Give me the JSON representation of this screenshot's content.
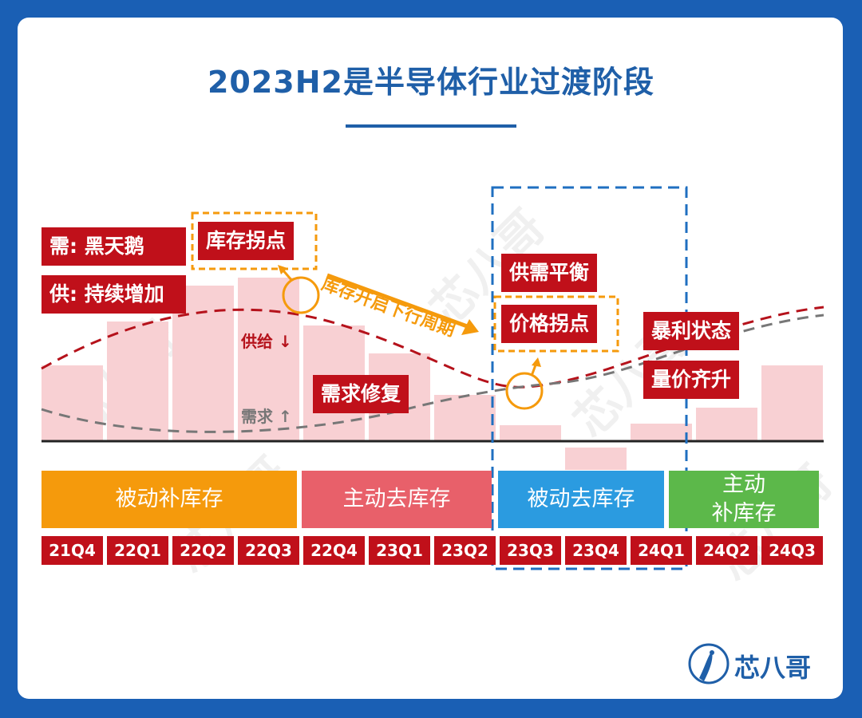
{
  "title": "2023H2是半导体行业过渡阶段",
  "chart_data": {
    "type": "bar",
    "categories": [
      "21Q4",
      "22Q1",
      "22Q2",
      "22Q3",
      "22Q4",
      "23Q1",
      "23Q2",
      "23Q3",
      "23Q4",
      "24Q1",
      "24Q2",
      "24Q3"
    ],
    "values": [
      95,
      150,
      195,
      205,
      145,
      110,
      58,
      20,
      -28,
      22,
      42,
      95
    ],
    "curves": [
      {
        "name": "供给",
        "color": "#c0101a",
        "style": "dashed"
      },
      {
        "name": "需求",
        "color": "#777777",
        "style": "dashed"
      }
    ],
    "phases": [
      {
        "label": "被动补库存",
        "color": "#f59a0c"
      },
      {
        "label": "主动去库存",
        "color": "#e8606a"
      },
      {
        "label": "被动去库存",
        "color": "#2b9be0"
      },
      {
        "label": "主动\n补库存",
        "color": "#5cb84a"
      }
    ],
    "annotations": {
      "demand": "需: 黑天鹅",
      "supply": "供: 持续增加",
      "inventory_turn": "库存拐点",
      "arrow_text": "库存开启下行周期",
      "supply_down": "供给 ↓",
      "demand_repair": "需求修复",
      "demand_up": "需求 ↑",
      "balance": "供需平衡",
      "price_turn": "价格拐点",
      "profit": "暴利状态",
      "rise": "量价齐升"
    }
  },
  "logo": {
    "text": "芯八哥",
    "watermark": "芯八哥"
  }
}
